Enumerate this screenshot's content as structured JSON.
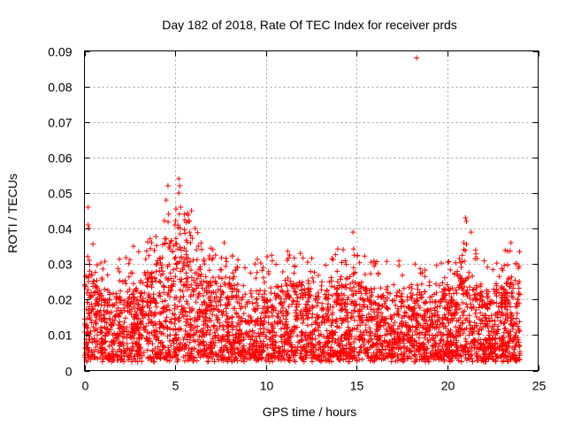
{
  "chart_data": {
    "type": "scatter",
    "title": "Day 182 of 2018, Rate Of TEC Index for receiver prds",
    "xlabel": "GPS time / hours",
    "ylabel": "ROTI / TECUs",
    "xlim": [
      0,
      25
    ],
    "ylim": [
      0,
      0.09
    ],
    "xticks": [
      0,
      5,
      10,
      15,
      20,
      25
    ],
    "xtick_labels": [
      "0",
      "5",
      "10",
      "15",
      "20",
      "25"
    ],
    "yticks": [
      0,
      0.01,
      0.02,
      0.03,
      0.04,
      0.05,
      0.06,
      0.07,
      0.08,
      0.09
    ],
    "ytick_labels": [
      "0",
      "0.01",
      "0.02",
      "0.03",
      "0.04",
      "0.05",
      "0.06",
      "0.07",
      "0.08",
      "0.09"
    ],
    "grid": true,
    "marker": "+",
    "series": [
      {
        "name": "ROTI",
        "color": "#ff0000",
        "x_range_hours": [
          0,
          24
        ],
        "dense_band": [
          0.003,
          0.025
        ],
        "outliers": [
          {
            "x": 0.2,
            "y": 0.046
          },
          {
            "x": 0.2,
            "y": 0.041
          },
          {
            "x": 0.25,
            "y": 0.04
          },
          {
            "x": 2.7,
            "y": 0.035
          },
          {
            "x": 3.7,
            "y": 0.036
          },
          {
            "x": 4.6,
            "y": 0.052
          },
          {
            "x": 4.5,
            "y": 0.048
          },
          {
            "x": 5.2,
            "y": 0.054
          },
          {
            "x": 5.25,
            "y": 0.052
          },
          {
            "x": 5.2,
            "y": 0.05
          },
          {
            "x": 5.3,
            "y": 0.046
          },
          {
            "x": 5.5,
            "y": 0.044
          },
          {
            "x": 5.9,
            "y": 0.045
          },
          {
            "x": 6.1,
            "y": 0.04
          },
          {
            "x": 7.7,
            "y": 0.036
          },
          {
            "x": 9.4,
            "y": 0.03
          },
          {
            "x": 11.9,
            "y": 0.033
          },
          {
            "x": 14.8,
            "y": 0.039
          },
          {
            "x": 18.3,
            "y": 0.088
          },
          {
            "x": 20.9,
            "y": 0.036
          },
          {
            "x": 21.0,
            "y": 0.043
          },
          {
            "x": 21.05,
            "y": 0.042
          },
          {
            "x": 21.3,
            "y": 0.039
          },
          {
            "x": 23.5,
            "y": 0.036
          }
        ]
      }
    ]
  }
}
